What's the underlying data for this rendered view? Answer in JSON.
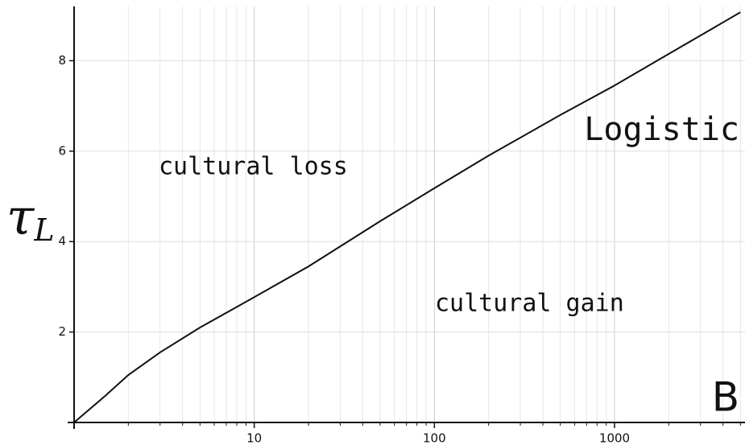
{
  "chart_data": {
    "type": "line",
    "x": [
      1,
      1.5,
      2,
      3,
      5,
      10,
      20,
      50,
      100,
      200,
      500,
      1000,
      2000,
      5000
    ],
    "series": [
      {
        "name": "Logistic",
        "color": "#111111",
        "values": [
          0,
          0.6,
          1.05,
          1.55,
          2.1,
          2.77,
          3.45,
          4.45,
          5.18,
          5.9,
          6.8,
          7.45,
          8.15,
          9.07
        ]
      }
    ],
    "x_label": "B",
    "y_label": {
      "text": "τ",
      "subscript": "L"
    },
    "annotations": [
      "cultural loss",
      "cultural gain"
    ],
    "xlog": true,
    "xlim": [
      1,
      5300
    ],
    "ylim": [
      0,
      9.2
    ],
    "xticks": [
      10,
      100,
      1000
    ],
    "xminorticks": [
      2,
      3,
      4,
      5,
      6,
      7,
      8,
      9,
      20,
      30,
      40,
      50,
      60,
      70,
      80,
      90,
      200,
      300,
      400,
      500,
      600,
      700,
      800,
      900,
      2000,
      3000,
      4000,
      5000
    ],
    "yticks": [
      2,
      4,
      6,
      8
    ],
    "grid": true
  }
}
